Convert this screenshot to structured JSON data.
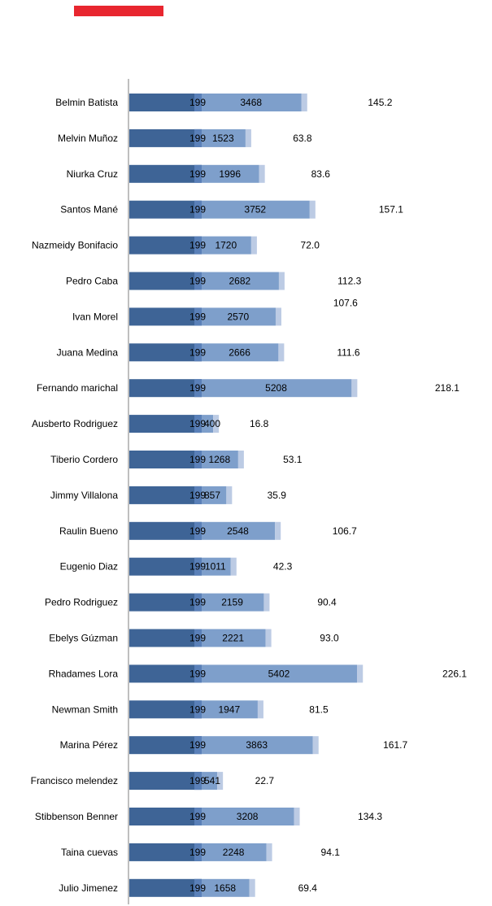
{
  "legend": {
    "marker_color": "#e8262f"
  },
  "chart_data": {
    "type": "bar",
    "orientation": "horizontal",
    "stacked": true,
    "colors": {
      "base": "#3e6496",
      "base_edge": "#5a80b8",
      "main": "#7e9fcb",
      "tip": "#bccbe4"
    },
    "categories": [
      "Belmin Batista",
      "Melvin Muñoz",
      "Niurka Cruz",
      "Santos Mané",
      "Nazmeidy Bonifacio",
      "Pedro Caba",
      "Ivan Morel",
      "Juana Medina",
      "Fernando marichal",
      "Ausberto Rodriguez",
      "Tiberio Cordero",
      "Jimmy Villalona",
      "Raulin Bueno",
      "Eugenio Diaz",
      "Pedro Rodriguez",
      "Ebelys Gúzman",
      "Rhadames Lora",
      "Newman Smith",
      "Marina Pérez",
      "Francisco melendez",
      "Stibbenson Benner",
      "Taina cuevas",
      "Julio Jimenez"
    ],
    "series": [
      {
        "values": [
          199,
          199,
          199,
          199,
          199,
          199,
          199,
          199,
          199,
          199,
          199,
          199,
          199,
          199,
          199,
          199,
          199,
          199,
          199,
          199,
          199,
          199,
          199
        ]
      },
      {
        "values": [
          3468,
          1523,
          1996,
          3752,
          1720,
          2682,
          2570,
          2666,
          5208,
          400,
          1268,
          857,
          2548,
          1011,
          2159,
          2221,
          5402,
          1947,
          3863,
          541,
          3208,
          2248,
          1658
        ]
      },
      {
        "values": [
          145.2,
          63.8,
          83.6,
          157.1,
          72.0,
          112.3,
          107.6,
          111.6,
          218.1,
          16.8,
          53.1,
          35.9,
          106.7,
          42.3,
          90.4,
          93.0,
          226.1,
          81.5,
          161.7,
          22.7,
          134.3,
          94.1,
          69.4
        ]
      }
    ],
    "labels_third": [
      "145.2",
      "63.8",
      "83.6",
      "157.1",
      "72.0",
      "112.3",
      "107.6",
      "111.6",
      "218.1",
      "16.8",
      "53.1",
      "35.9",
      "106.7",
      "42.3",
      "90.4",
      "93.0",
      "226.1",
      "81.5",
      "161.7",
      "22.7",
      "134.3",
      "94.1",
      "69.4"
    ],
    "xlim": [
      0,
      6000
    ],
    "grid": false,
    "legend_position": "top-left"
  }
}
